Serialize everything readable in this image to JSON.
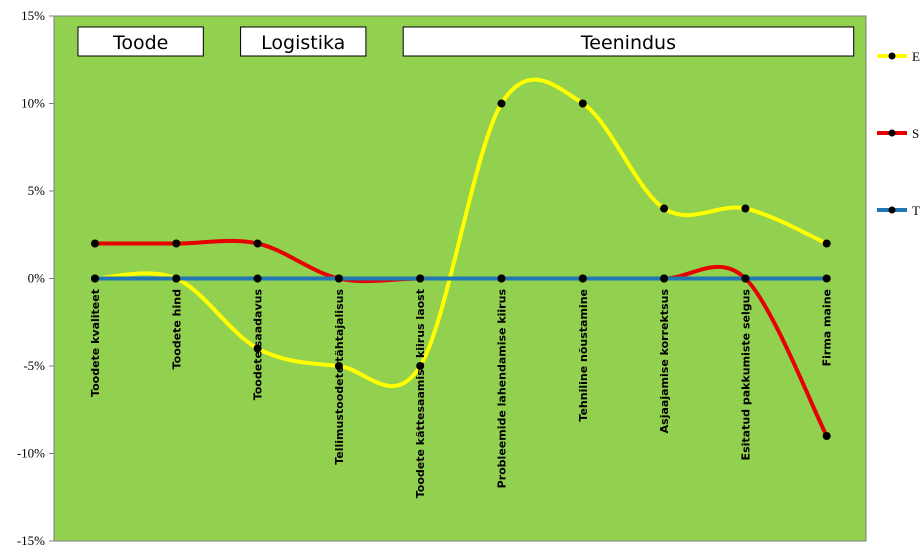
{
  "chart_data": {
    "type": "line",
    "smooth": true,
    "categories": [
      "Toodete kvaliteet",
      "Toodete hind",
      "Toodete saadavus",
      "Tellimustoodete tähtajalisus",
      "Toodete kättesaamise kiirus laost",
      "Probleemide lahendamise kiirus",
      "Tehniline nõustamine",
      "Asjaajamise korrektsus",
      "Esitatud pakkumiste selgus",
      "Firma maine"
    ],
    "series": [
      {
        "name": "E",
        "color": "#ffff00",
        "values": [
          0,
          0,
          -4,
          -5,
          -5,
          10,
          10,
          4,
          4,
          2
        ]
      },
      {
        "name": "S",
        "color": "#e60000",
        "values": [
          2,
          2,
          2,
          0,
          0,
          0,
          0,
          0,
          0,
          -9
        ]
      },
      {
        "name": "T",
        "color": "#1f77b4",
        "values": [
          0,
          0,
          0,
          0,
          0,
          0,
          0,
          0,
          0,
          0
        ]
      }
    ],
    "ylim": [
      -15,
      15
    ],
    "yticks": [
      15,
      10,
      5,
      0,
      -5,
      -10,
      -15
    ],
    "ytick_labels": [
      "15%",
      "10%",
      "5%",
      "0%",
      "-5%",
      "-10%",
      "-15%"
    ],
    "groups": [
      {
        "label": "Toode",
        "from": 0,
        "to": 1
      },
      {
        "label": "Logistika",
        "from": 2,
        "to": 3
      },
      {
        "label": "Teenindus",
        "from": 4,
        "to": 9
      }
    ],
    "plot_background": "#92d050",
    "legend_position": "right",
    "grid": false
  }
}
